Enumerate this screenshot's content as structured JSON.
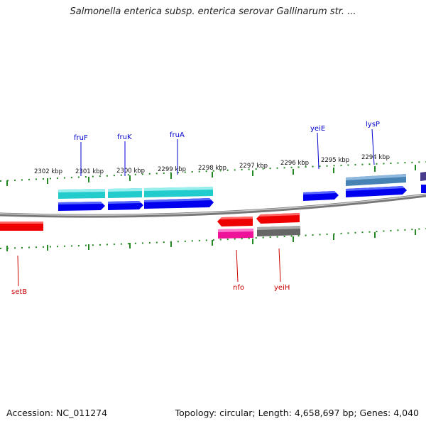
{
  "title": "Salmonella enterica subsp. enterica serovar Gallinarum str. ...",
  "footer": {
    "accession": "Accession: NC_011274",
    "summary": "Topology: circular; Length: 4,658,697 bp; Genes: 4,040"
  },
  "ruler": {
    "ticks": [
      "2302 kbp",
      "2301 kbp",
      "2300 kbp",
      "2299 kbp",
      "2298 kbp",
      "2297 kbp",
      "2296 kbp",
      "2295 kbp",
      "2294 kbp"
    ]
  },
  "genes_top": [
    {
      "name": "fruF",
      "color": "#0000cc"
    },
    {
      "name": "fruK",
      "color": "#0000cc"
    },
    {
      "name": "fruA",
      "color": "#0000cc"
    },
    {
      "name": "yeiE",
      "color": "#0000cc"
    },
    {
      "name": "lysP",
      "color": "#0000cc"
    }
  ],
  "genes_bottom": [
    {
      "name": "setB",
      "color": "#cc0000"
    },
    {
      "name": "nfo",
      "color": "#cc0000"
    },
    {
      "name": "yeiH",
      "color": "#cc0000"
    }
  ],
  "colors": {
    "forward_gene": "#0000ee",
    "reverse_gene": "#ee0000",
    "cds_cyan": "#22cccc",
    "steelblue": "#4682b4",
    "magenta": "#ee1199",
    "gray": "#666666",
    "tick": "#228822",
    "backbone": "#888888"
  }
}
